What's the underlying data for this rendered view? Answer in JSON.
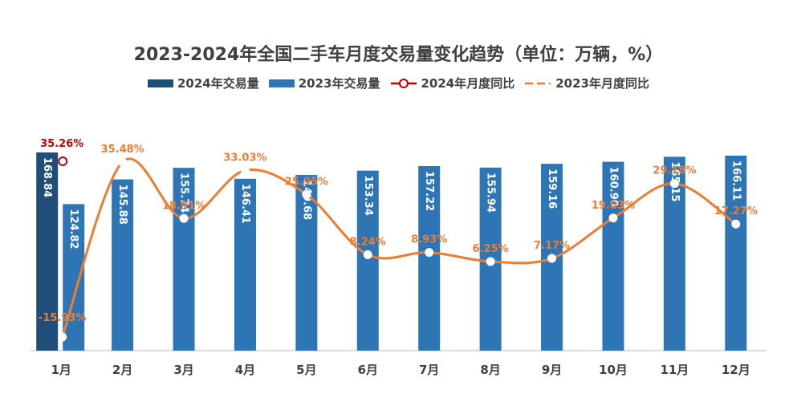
{
  "chart_data": {
    "type": "bar",
    "title": "2023-2024年全国二手车月度交易量变化趋势（单位：万辆，%）",
    "categories": [
      "1月",
      "2月",
      "3月",
      "4月",
      "5月",
      "6月",
      "7月",
      "8月",
      "9月",
      "10月",
      "11月",
      "12月"
    ],
    "series": [
      {
        "name": "2024年交易量",
        "type": "bar",
        "color": "#1F4E79",
        "values": [
          168.84,
          null,
          null,
          null,
          null,
          null,
          null,
          null,
          null,
          null,
          null,
          null
        ],
        "labels": [
          "168.84",
          "",
          "",
          "",
          "",
          "",
          "",
          "",
          "",
          "",
          "",
          ""
        ]
      },
      {
        "name": "2023年交易量",
        "type": "bar",
        "color": "#2E75B6",
        "values": [
          124.82,
          145.88,
          155.74,
          146.41,
          149.68,
          153.34,
          157.22,
          155.94,
          159.16,
          160.9,
          165.15,
          166.11
        ],
        "labels": [
          "124.82",
          "145.88",
          "155.74",
          "146.41",
          "149.68",
          "153.34",
          "157.22",
          "155.94",
          "159.16",
          "160.90",
          "165.15",
          "166.11"
        ]
      },
      {
        "name": "2024年月度同比",
        "type": "line",
        "color": "#C00000",
        "values": [
          35.26,
          null,
          null,
          null,
          null,
          null,
          null,
          null,
          null,
          null,
          null,
          null
        ],
        "labels": [
          "35.26%",
          "",
          "",
          "",
          "",
          "",
          "",
          "",
          "",
          "",
          "",
          ""
        ]
      },
      {
        "name": "2023年月度同比",
        "type": "line",
        "color": "#ED7D31",
        "values": [
          -15.93,
          35.48,
          18.91,
          33.03,
          25.95,
          8.24,
          8.93,
          6.25,
          7.17,
          19.03,
          29.18,
          17.27
        ],
        "labels": [
          "-15.93%",
          "35.48%",
          "18.91%",
          "33.03%",
          "25.95%",
          "8.24%",
          "8.93%",
          "6.25%",
          "7.17%",
          "19.03%",
          "29.18%",
          "17.27%"
        ]
      }
    ],
    "ylim": [
      0,
      180
    ],
    "y2lim": [
      -20,
      40
    ],
    "grid": false,
    "legend_position": "top-center"
  }
}
